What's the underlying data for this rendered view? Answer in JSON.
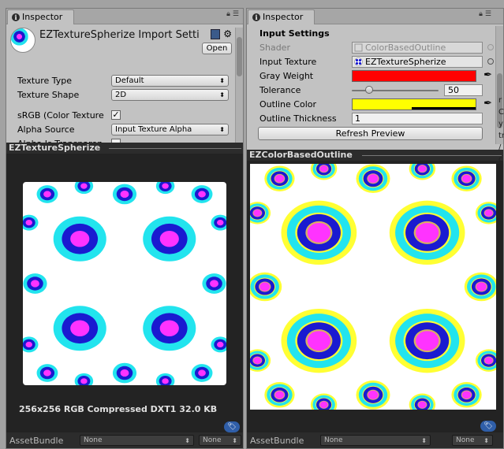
{
  "left_panel": {
    "tab_title": "Inspector",
    "asset_title": "EZTextureSpherize Import Setti",
    "open_label": "Open",
    "properties": [
      {
        "label": "Texture Type",
        "value": "Default",
        "kind": "dropdown"
      },
      {
        "label": "Texture Shape",
        "value": "2D",
        "kind": "dropdown"
      },
      {
        "label": "sRGB (Color Texture",
        "value": "✓",
        "kind": "checkbox"
      },
      {
        "label": "Alpha Source",
        "value": "Input Texture Alpha",
        "kind": "dropdown"
      },
      {
        "label": "Alpha Is Transparen",
        "value": "",
        "kind": "checkbox"
      }
    ],
    "preview_title": "EZTextureSpherize",
    "preview_info": "256x256  RGB Compressed DXT1   32.0 KB",
    "assetbundle_label": "AssetBundle",
    "bundle_name": "None",
    "bundle_variant": "None"
  },
  "right_panel": {
    "tab_title": "Inspector",
    "section_title": "Input Settings",
    "shader_label": "Shader",
    "shader_value": "ColorBasedOutline",
    "input_texture_label": "Input Texture",
    "input_texture_value": "EZTextureSpherize",
    "gray_weight_label": "Gray Weight",
    "gray_weight_color": "#ff0000",
    "tolerance_label": "Tolerance",
    "tolerance_value": "50",
    "outline_color_label": "Outline Color",
    "outline_color": "#ffff00",
    "outline_thickness_label": "Outline Thickness",
    "outline_thickness_value": "1",
    "refresh_label": "Refresh Preview",
    "preview_title": "EZColorBasedOutline",
    "assetbundle_label": "AssetBundle",
    "bundle_name": "None",
    "bundle_variant": "None"
  },
  "colors": {
    "blob_outer": "#22e4ee",
    "blob_mid": "#1a1ad0",
    "blob_inner": "#ff33ff",
    "outline": "#ffff33"
  },
  "icons": [
    "info-icon",
    "lock-icon",
    "menu-icon",
    "book-icon",
    "gear-icon",
    "target-icon",
    "eyedropper-icon",
    "tag-icon"
  ]
}
